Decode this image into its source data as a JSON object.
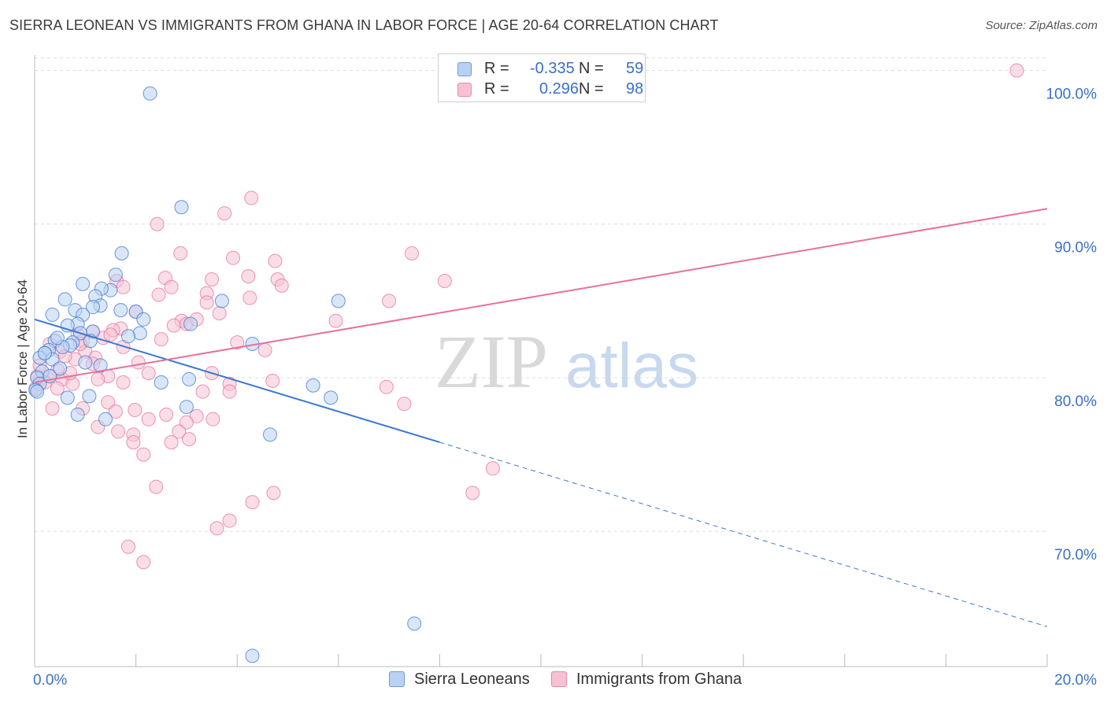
{
  "title": "SIERRA LEONEAN VS IMMIGRANTS FROM GHANA IN LABOR FORCE | AGE 20-64 CORRELATION CHART",
  "source": "Source: ZipAtlas.com",
  "watermark": {
    "zip": "ZIP",
    "atlas": "atlas"
  },
  "legend": {
    "rows": [
      {
        "r_label": "R =",
        "r_value": "-0.335",
        "n_label": "N =",
        "n_value": "59"
      },
      {
        "r_label": "R =",
        "r_value": "0.296",
        "n_label": "N =",
        "n_value": "98"
      }
    ]
  },
  "colors": {
    "blue": "#3a78d0",
    "blue_fill": "#b9d1f3",
    "pink": "#e8709a",
    "pink_fill": "#f6c2d3",
    "axis_label": "#3a70c8",
    "grid": "#dddddd"
  },
  "chart_data": {
    "type": "scatter",
    "xlabel": "",
    "ylabel": "In Labor Force | Age 20-64",
    "xlim": [
      0,
      20
    ],
    "ylim": [
      61.2,
      101
    ],
    "x_tick_labels": [
      {
        "value": 0,
        "label": "0.0%"
      },
      {
        "value": 20,
        "label": "20.0%"
      }
    ],
    "y_tick_labels": [
      {
        "value": 100,
        "label": "100.0%"
      },
      {
        "value": 90,
        "label": "90.0%"
      },
      {
        "value": 80,
        "label": "80.0%"
      },
      {
        "value": 70,
        "label": "70.0%"
      }
    ],
    "grid": true,
    "legend_position": "top-center",
    "series": [
      {
        "name": "Sierra Leoneans",
        "color": "#3a78d0",
        "points": [
          [
            2.28,
            98.5
          ],
          [
            2.9,
            91.1
          ],
          [
            1.72,
            88.1
          ],
          [
            1.6,
            86.7
          ],
          [
            1.5,
            85.7
          ],
          [
            0.95,
            86.1
          ],
          [
            1.32,
            85.8
          ],
          [
            1.2,
            85.3
          ],
          [
            0.6,
            85.1
          ],
          [
            1.3,
            84.7
          ],
          [
            1.15,
            84.6
          ],
          [
            0.8,
            84.4
          ],
          [
            1.7,
            84.4
          ],
          [
            2.0,
            84.3
          ],
          [
            0.35,
            84.1
          ],
          [
            0.95,
            84.1
          ],
          [
            2.15,
            83.8
          ],
          [
            0.85,
            83.5
          ],
          [
            0.65,
            83.4
          ],
          [
            3.08,
            83.5
          ],
          [
            3.7,
            85.0
          ],
          [
            6.0,
            85.0
          ],
          [
            1.15,
            83.0
          ],
          [
            0.9,
            82.9
          ],
          [
            2.08,
            82.9
          ],
          [
            1.85,
            82.7
          ],
          [
            0.4,
            82.4
          ],
          [
            0.75,
            82.3
          ],
          [
            0.7,
            82.1
          ],
          [
            0.55,
            82.0
          ],
          [
            0.28,
            81.8
          ],
          [
            0.2,
            81.6
          ],
          [
            0.1,
            81.3
          ],
          [
            0.35,
            81.2
          ],
          [
            1.0,
            81.0
          ],
          [
            1.3,
            80.8
          ],
          [
            0.5,
            80.6
          ],
          [
            0.15,
            80.4
          ],
          [
            0.05,
            80.0
          ],
          [
            0.1,
            79.6
          ],
          [
            0.02,
            79.2
          ],
          [
            2.5,
            79.7
          ],
          [
            3.05,
            79.9
          ],
          [
            4.3,
            82.2
          ],
          [
            5.5,
            79.5
          ],
          [
            5.85,
            78.7
          ],
          [
            0.65,
            78.7
          ],
          [
            1.08,
            78.8
          ],
          [
            0.85,
            77.6
          ],
          [
            3.0,
            78.1
          ],
          [
            1.4,
            77.3
          ],
          [
            4.65,
            76.3
          ],
          [
            7.5,
            64.0
          ],
          [
            4.3,
            61.9
          ],
          [
            0.2,
            81.6
          ],
          [
            0.45,
            82.6
          ],
          [
            0.3,
            80.1
          ],
          [
            0.05,
            79.1
          ],
          [
            1.1,
            82.4
          ]
        ],
        "trend": {
          "x": [
            0,
            8
          ],
          "y": [
            83.8,
            75.8
          ],
          "dashed_to": {
            "x": [
              8,
              20
            ],
            "y": [
              75.8,
              63.8
            ]
          }
        }
      },
      {
        "name": "Immigrants from Ghana",
        "color": "#e8709a",
        "points": [
          [
            19.4,
            100.0
          ],
          [
            4.28,
            91.7
          ],
          [
            3.75,
            90.7
          ],
          [
            2.42,
            90.0
          ],
          [
            7.45,
            88.1
          ],
          [
            2.88,
            88.1
          ],
          [
            3.92,
            87.8
          ],
          [
            4.75,
            87.6
          ],
          [
            8.1,
            86.3
          ],
          [
            4.22,
            86.6
          ],
          [
            2.58,
            86.5
          ],
          [
            3.5,
            86.4
          ],
          [
            4.8,
            86.4
          ],
          [
            1.62,
            86.3
          ],
          [
            1.75,
            85.9
          ],
          [
            2.7,
            85.9
          ],
          [
            4.88,
            86.0
          ],
          [
            2.45,
            85.4
          ],
          [
            3.4,
            85.5
          ],
          [
            4.25,
            85.2
          ],
          [
            3.4,
            84.9
          ],
          [
            7.0,
            85.0
          ],
          [
            2.0,
            84.3
          ],
          [
            3.65,
            84.2
          ],
          [
            2.9,
            83.7
          ],
          [
            5.95,
            83.7
          ],
          [
            2.75,
            83.4
          ],
          [
            3.0,
            83.5
          ],
          [
            1.7,
            83.2
          ],
          [
            1.55,
            83.1
          ],
          [
            1.15,
            83.0
          ],
          [
            0.85,
            82.8
          ],
          [
            1.35,
            82.6
          ],
          [
            0.95,
            82.4
          ],
          [
            4.0,
            82.3
          ],
          [
            1.75,
            82.0
          ],
          [
            1.0,
            81.7
          ],
          [
            4.55,
            81.8
          ],
          [
            0.5,
            81.7
          ],
          [
            1.2,
            81.3
          ],
          [
            0.8,
            81.2
          ],
          [
            2.05,
            81.0
          ],
          [
            1.15,
            80.9
          ],
          [
            0.45,
            80.5
          ],
          [
            2.25,
            80.3
          ],
          [
            3.5,
            80.3
          ],
          [
            0.3,
            80.1
          ],
          [
            0.1,
            79.9
          ],
          [
            1.45,
            80.1
          ],
          [
            0.55,
            79.9
          ],
          [
            1.75,
            79.7
          ],
          [
            4.7,
            79.8
          ],
          [
            3.85,
            79.6
          ],
          [
            0.75,
            79.6
          ],
          [
            3.32,
            79.1
          ],
          [
            3.85,
            79.1
          ],
          [
            6.95,
            79.4
          ],
          [
            0.02,
            79.3
          ],
          [
            0.35,
            78.0
          ],
          [
            0.95,
            78.0
          ],
          [
            1.45,
            78.4
          ],
          [
            1.6,
            77.8
          ],
          [
            1.98,
            77.9
          ],
          [
            2.6,
            77.6
          ],
          [
            3.2,
            77.5
          ],
          [
            2.25,
            77.3
          ],
          [
            3.52,
            77.3
          ],
          [
            3.0,
            77.1
          ],
          [
            1.25,
            76.8
          ],
          [
            1.65,
            76.5
          ],
          [
            1.95,
            76.3
          ],
          [
            2.85,
            76.5
          ],
          [
            3.05,
            76.0
          ],
          [
            2.7,
            75.8
          ],
          [
            1.95,
            75.8
          ],
          [
            2.15,
            75.0
          ],
          [
            7.3,
            78.3
          ],
          [
            9.05,
            74.1
          ],
          [
            2.4,
            72.9
          ],
          [
            8.65,
            72.5
          ],
          [
            4.72,
            72.5
          ],
          [
            4.3,
            71.9
          ],
          [
            3.85,
            70.7
          ],
          [
            3.6,
            70.2
          ],
          [
            1.85,
            69.0
          ],
          [
            2.15,
            68.0
          ],
          [
            0.05,
            80.1
          ],
          [
            0.2,
            79.7
          ],
          [
            0.7,
            80.3
          ],
          [
            1.25,
            79.9
          ],
          [
            0.6,
            81.4
          ],
          [
            0.9,
            82.2
          ],
          [
            2.5,
            82.5
          ],
          [
            3.2,
            83.8
          ],
          [
            1.5,
            82.8
          ],
          [
            0.3,
            82.2
          ],
          [
            0.1,
            80.8
          ],
          [
            0.45,
            79.3
          ]
        ],
        "trend": {
          "x": [
            0,
            20
          ],
          "y": [
            79.7,
            91.0
          ]
        }
      }
    ]
  }
}
